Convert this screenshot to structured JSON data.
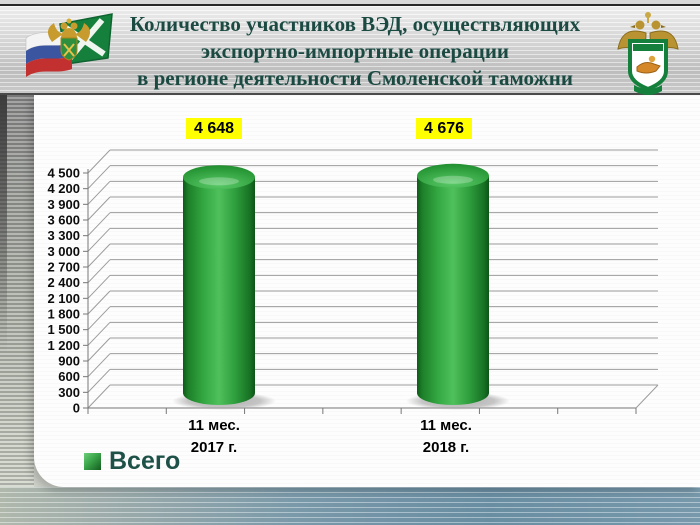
{
  "header": {
    "title_lines": [
      "Количество участников ВЭД, осуществляющих",
      "экспортно-импортные операции",
      "в регионе деятельности Смоленской таможни"
    ],
    "left_logo": "russian-flag-customs-flag-eagle-emblem",
    "right_logo": "customs-gold-eagle-with-smolensk-shield"
  },
  "chart_data": {
    "type": "bar",
    "style": "3d-cylinder",
    "title": "Количество участников ВЭД, осуществляющих экспортно-импортные операции в регионе деятельности Смоленской таможни",
    "categories": [
      "11 мес. 2017 г.",
      "11 мес. 2018 г."
    ],
    "category_lines": [
      [
        "11 мес.",
        "2017 г."
      ],
      [
        "11 мес.",
        "2018 г."
      ]
    ],
    "series": [
      {
        "name": "Всего",
        "values": [
          4648,
          4676
        ]
      }
    ],
    "data_labels": [
      "4 648",
      "4 676"
    ],
    "ylim": [
      0,
      4500
    ],
    "ytick_step": 300,
    "ytick_labels": [
      "0",
      "300",
      "600",
      "900",
      "1 200",
      "1 500",
      "1 800",
      "2 100",
      "2 400",
      "2 700",
      "3 000",
      "3 300",
      "3 600",
      "3 900",
      "4 200",
      "4 500"
    ],
    "grid": true,
    "legend": {
      "label": "Всего",
      "position": "bottom-left"
    },
    "colors": {
      "bar": "#2f9f3d",
      "label_bg": "#ffff00",
      "label_text": "#000000",
      "legend_text": "#1e5148",
      "title_text": "#1b4a42",
      "gridline": "#9c9c9c"
    }
  }
}
